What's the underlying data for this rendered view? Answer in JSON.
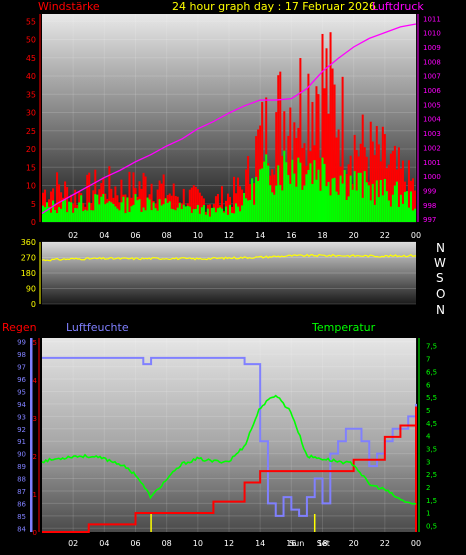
{
  "header": {
    "left_label": "Windstärke",
    "title": "24 hour graph day : 17 Februar 2026",
    "right_label": "Luftdruck",
    "left_color": "#ff0000",
    "title_color": "#ffff00",
    "right_color": "#ff00ff"
  },
  "compass": [
    "N",
    "W",
    "S",
    "O",
    "N"
  ],
  "bottom_labels": {
    "rain": "Regen",
    "humidity": "Luftfeuchte",
    "temperature": "Temperatur",
    "rain_color": "#ff0000",
    "humidity_color": "#8080ff",
    "temperature_color": "#00ff00"
  },
  "sun_markers": {
    "sunrise_label": "Sun",
    "sunset_label": "Set"
  },
  "chart_data": [
    {
      "type": "bar",
      "title": "24 hour graph day : 17 Februar 2026",
      "x_ticks": [
        "02",
        "04",
        "06",
        "08",
        "10",
        "12",
        "14",
        "16",
        "18",
        "20",
        "22",
        "00"
      ],
      "y_left": {
        "label": "Windstärke",
        "ticks": [
          "0",
          "5",
          "10",
          "15",
          "20",
          "25",
          "30",
          "35",
          "40",
          "45",
          "50",
          "55"
        ],
        "range": [
          0,
          57
        ]
      },
      "y_right": {
        "label": "Luftdruck",
        "ticks": [
          "997",
          "998",
          "999",
          "1000",
          "1001",
          "1002",
          "1003",
          "1004",
          "1005",
          "1006",
          "1007",
          "1008",
          "1009",
          "1010",
          "1011"
        ],
        "range": [
          996.8,
          1011.3
        ]
      },
      "series": [
        {
          "name": "Böen",
          "color": "#ff0000",
          "type": "bar",
          "x": [
            0,
            1,
            2,
            3,
            4,
            5,
            6,
            7,
            8,
            9,
            10,
            11,
            12,
            13,
            14,
            15,
            16,
            17,
            18,
            19,
            20,
            21,
            22,
            23,
            24
          ],
          "values": [
            10,
            12,
            9,
            11,
            13,
            11,
            12,
            14,
            10,
            9,
            8,
            7,
            9,
            12,
            28,
            36,
            40,
            44,
            50,
            38,
            27,
            24,
            21,
            16,
            12
          ]
        },
        {
          "name": "Wind",
          "color": "#00ff00",
          "type": "bar",
          "x": [
            0,
            1,
            2,
            3,
            4,
            5,
            6,
            7,
            8,
            9,
            10,
            11,
            12,
            13,
            14,
            15,
            16,
            17,
            18,
            19,
            20,
            21,
            22,
            23,
            24
          ],
          "values": [
            4,
            5,
            5,
            6,
            6,
            5,
            6,
            6,
            5,
            4,
            4,
            3,
            4,
            6,
            13,
            16,
            18,
            17,
            16,
            14,
            12,
            10,
            9,
            8,
            6
          ]
        },
        {
          "name": "Luftdruck",
          "color": "#ff00ff",
          "type": "line",
          "x": [
            0,
            1,
            2,
            3,
            4,
            5,
            6,
            7,
            8,
            9,
            10,
            11,
            12,
            13,
            14,
            15,
            16,
            17,
            18,
            19,
            20,
            21,
            22,
            23,
            24
          ],
          "values": [
            997.4,
            998.1,
            998.7,
            999.3,
            999.9,
            1000.4,
            1001.0,
            1001.5,
            1002.1,
            1002.6,
            1003.3,
            1003.8,
            1004.4,
            1004.9,
            1005.3,
            1005.3,
            1005.4,
            1006.1,
            1007.3,
            1008.2,
            1009.0,
            1009.6,
            1010.0,
            1010.4,
            1010.6
          ]
        }
      ]
    },
    {
      "type": "line",
      "x_ticks": [],
      "y_ticks": [
        "0",
        "90",
        "180",
        "270",
        "360"
      ],
      "ylim": [
        0,
        360
      ],
      "series": [
        {
          "name": "Windrichtung",
          "color": "#ffff00",
          "x": [
            0,
            2,
            4,
            6,
            8,
            10,
            12,
            14,
            16,
            18,
            20,
            22,
            24
          ],
          "values": [
            255,
            262,
            264,
            263,
            265,
            262,
            267,
            272,
            280,
            282,
            280,
            278,
            282
          ]
        }
      ]
    },
    {
      "type": "line",
      "x_ticks": [
        "02",
        "04",
        "06",
        "08",
        "10",
        "12",
        "14",
        "16",
        "18",
        "20",
        "22",
        "00"
      ],
      "y_humidity": {
        "label": "Luftfeuchte",
        "ticks": [
          "84",
          "85",
          "86",
          "87",
          "88",
          "89",
          "90",
          "91",
          "92",
          "93",
          "94",
          "95",
          "96",
          "97",
          "98",
          "99"
        ],
        "range": [
          83.7,
          99.3
        ]
      },
      "y_rain": {
        "label": "Regen",
        "ticks": [
          "0",
          "1",
          "2",
          "3",
          "4",
          "5"
        ],
        "range": [
          0,
          5.1
        ]
      },
      "y_temperature": {
        "label": "Temperatur",
        "ticks": [
          "0,5",
          "1",
          "1,5",
          "2",
          "2,5",
          "3",
          "3,5",
          "4",
          "4,5",
          "5",
          "5,5",
          "6",
          "6,5",
          "7",
          "7,5"
        ],
        "range": [
          0.25,
          7.8
        ]
      },
      "series": [
        {
          "name": "Luftfeuchte",
          "color": "#8080ff",
          "axis": "humidity",
          "x": [
            0,
            6,
            6.5,
            7,
            7.5,
            9,
            12,
            13,
            14,
            14.5,
            15,
            15.5,
            16,
            16.5,
            17,
            17.5,
            18,
            18.5,
            19,
            19.5,
            20,
            20.5,
            21,
            21.5,
            22,
            22.5,
            23,
            23.5,
            24
          ],
          "values": [
            97.7,
            97.7,
            97.2,
            97.7,
            97.7,
            97.7,
            97.7,
            97.2,
            91,
            86,
            85,
            86.5,
            85.5,
            85,
            86.5,
            88,
            86,
            90,
            91,
            92,
            92,
            91,
            89,
            90,
            91,
            92,
            92,
            93,
            94
          ]
        },
        {
          "name": "Regen",
          "color": "#ff0000",
          "axis": "rain",
          "x": [
            0,
            2,
            3,
            6,
            8,
            11,
            13,
            14,
            16,
            18,
            20,
            22,
            23,
            24
          ],
          "values": [
            0,
            0,
            0.2,
            0.5,
            0.5,
            0.8,
            1.3,
            1.6,
            1.6,
            1.6,
            1.9,
            2.5,
            2.8,
            3.3
          ]
        },
        {
          "name": "Temperatur",
          "color": "#00ff00",
          "axis": "temperature",
          "x": [
            0,
            1,
            2,
            3,
            4,
            5,
            6,
            7,
            8,
            9,
            10,
            11,
            12,
            13,
            14,
            15,
            16,
            17,
            18,
            19,
            20,
            21,
            22,
            23,
            24
          ],
          "values": [
            3.0,
            3.1,
            3.2,
            3.2,
            3.1,
            2.9,
            2.5,
            1.6,
            2.3,
            2.9,
            3.1,
            3.0,
            3.0,
            3.6,
            5.1,
            5.6,
            4.9,
            3.2,
            3.1,
            3.0,
            2.9,
            2.1,
            1.9,
            1.5,
            1.3
          ]
        }
      ],
      "annotations": [
        {
          "text": "Sun",
          "x": 7.0
        },
        {
          "text": "Set",
          "x": 17.5
        }
      ]
    }
  ]
}
